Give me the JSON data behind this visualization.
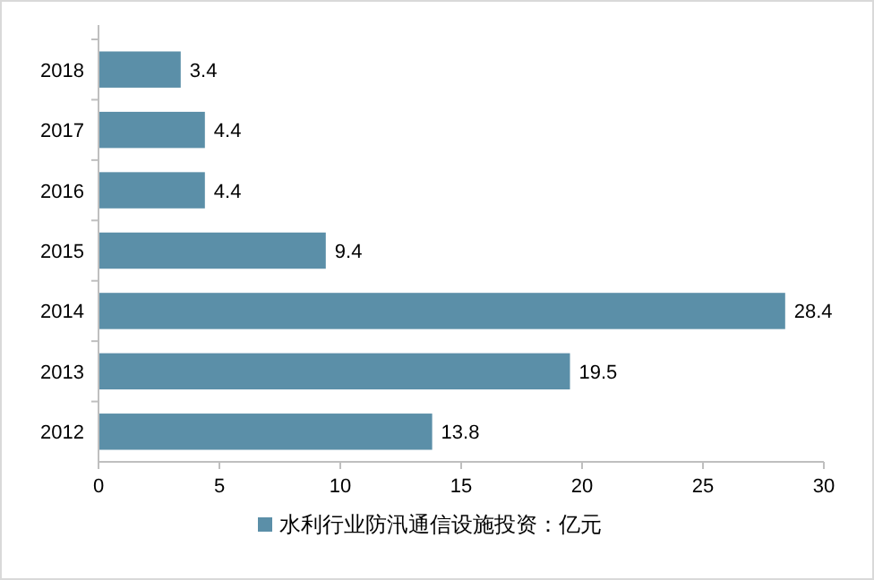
{
  "chart_data": {
    "type": "bar",
    "orientation": "horizontal",
    "categories": [
      "2018",
      "2017",
      "2016",
      "2015",
      "2014",
      "2013",
      "2012"
    ],
    "series": [
      {
        "name": "水利行业防汛通信设施投资：亿元",
        "color": "#5b8fa8",
        "values": [
          3.4,
          4.4,
          4.4,
          9.4,
          28.4,
          19.5,
          13.8
        ]
      }
    ],
    "xlim": [
      0,
      30
    ],
    "xticks": [
      0,
      5,
      10,
      15,
      20,
      25,
      30
    ],
    "data_labels": true,
    "legend": "bottom",
    "grid": false
  }
}
